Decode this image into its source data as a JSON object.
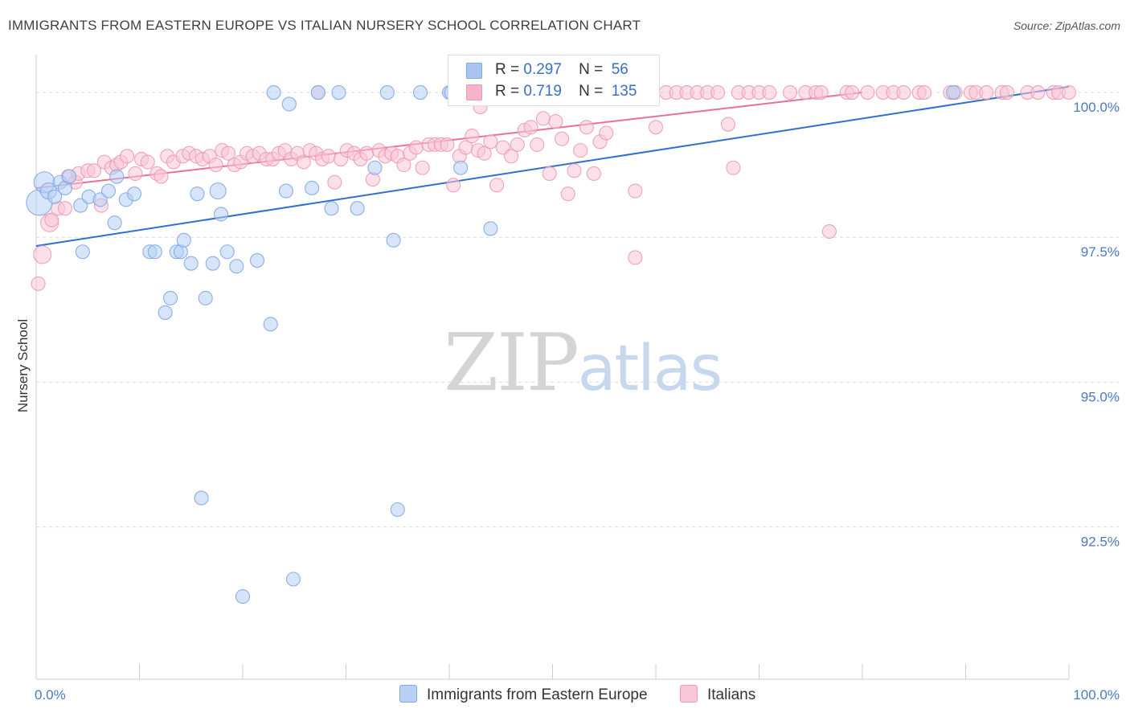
{
  "header": {
    "title": "IMMIGRANTS FROM EASTERN EUROPE VS ITALIAN NURSERY SCHOOL CORRELATION CHART",
    "source": "Source: ZipAtlas.com"
  },
  "watermark": {
    "zip": "ZIP",
    "atlas": "atlas"
  },
  "legend_box": {
    "rows": [
      {
        "r_label": "R =",
        "r_value": "0.297",
        "n_label": "N =",
        "n_value": "56",
        "color": "#a9c4ee"
      },
      {
        "r_label": "R =",
        "r_value": "0.719",
        "n_label": "N =",
        "n_value": "135",
        "color": "#f5b4c8"
      }
    ]
  },
  "bottom_legend": [
    {
      "label": "Immigrants from Eastern Europe",
      "color": "#b7d0f5"
    },
    {
      "label": "Italians",
      "color": "#f8c6d5"
    }
  ],
  "chart_data": {
    "type": "scatter",
    "title": "IMMIGRANTS FROM EASTERN EUROPE VS ITALIAN NURSERY SCHOOL CORRELATION CHART",
    "xlabel": "",
    "ylabel": "Nursery School",
    "xlim": [
      0,
      100
    ],
    "ylim": [
      90.15,
      100.5
    ],
    "x_tick_labels": [
      "0.0%",
      "100.0%"
    ],
    "y_ticks": [
      {
        "value": 100.0,
        "label": "100.0%"
      },
      {
        "value": 97.5,
        "label": "97.5%"
      },
      {
        "value": 95.0,
        "label": "95.0%"
      },
      {
        "value": 92.5,
        "label": "92.5%"
      }
    ],
    "series": [
      {
        "name": "Immigrants from Eastern Europe",
        "color": "#7fa7e6",
        "fill": "#b7d0f5",
        "line_color": "#2f6fd0",
        "trend": {
          "x0": 0,
          "y0": 97.35,
          "x1": 100,
          "y1": 100.1
        },
        "points": [
          [
            0.3,
            98.1
          ],
          [
            0.8,
            98.45
          ],
          [
            1.2,
            98.3
          ],
          [
            1.8,
            98.2
          ],
          [
            2.3,
            98.45
          ],
          [
            2.8,
            98.35
          ],
          [
            3.2,
            98.55
          ],
          [
            4.5,
            97.25
          ],
          [
            4.3,
            98.05
          ],
          [
            5.1,
            98.2
          ],
          [
            6.2,
            98.15
          ],
          [
            7.0,
            98.3
          ],
          [
            7.8,
            98.55
          ],
          [
            7.6,
            97.75
          ],
          [
            8.7,
            98.15
          ],
          [
            9.5,
            98.25
          ],
          [
            11.0,
            97.25
          ],
          [
            11.5,
            97.25
          ],
          [
            12.5,
            96.2
          ],
          [
            13.0,
            96.45
          ],
          [
            13.6,
            97.25
          ],
          [
            14.0,
            97.25
          ],
          [
            14.3,
            97.45
          ],
          [
            15.0,
            97.05
          ],
          [
            15.6,
            98.25
          ],
          [
            16.0,
            93.0
          ],
          [
            16.4,
            96.45
          ],
          [
            17.1,
            97.05
          ],
          [
            17.6,
            98.3
          ],
          [
            17.9,
            97.9
          ],
          [
            18.5,
            97.25
          ],
          [
            19.4,
            97.0
          ],
          [
            20.0,
            91.3
          ],
          [
            21.4,
            97.1
          ],
          [
            22.7,
            96.0
          ],
          [
            23.0,
            100.0
          ],
          [
            24.2,
            98.3
          ],
          [
            24.5,
            99.8
          ],
          [
            24.9,
            91.6
          ],
          [
            26.7,
            98.35
          ],
          [
            27.3,
            100.0
          ],
          [
            28.6,
            98.0
          ],
          [
            29.3,
            100.0
          ],
          [
            31.1,
            98.0
          ],
          [
            32.8,
            98.7
          ],
          [
            34.0,
            100.0
          ],
          [
            34.6,
            97.45
          ],
          [
            35.0,
            92.8
          ],
          [
            37.2,
            100.0
          ],
          [
            40.0,
            100.0
          ],
          [
            40.2,
            100.0
          ],
          [
            41.1,
            98.7
          ],
          [
            42.6,
            100.0
          ],
          [
            43.0,
            100.0
          ],
          [
            44.0,
            97.65
          ],
          [
            88.8,
            100.0
          ]
        ],
        "sizes": {
          "0": 16,
          "1": 13,
          "2": 10,
          "28": 10
        }
      },
      {
        "name": "Italians",
        "color": "#ee9ab4",
        "fill": "#f8c6d5",
        "line_color": "#e8709a",
        "trend": {
          "x0": 0,
          "y0": 98.35,
          "x1": 80,
          "y1": 100.0
        },
        "points": [
          [
            0.2,
            96.7
          ],
          [
            0.6,
            97.2
          ],
          [
            1.3,
            97.75
          ],
          [
            1.5,
            97.8
          ],
          [
            2.1,
            98.0
          ],
          [
            2.8,
            98.0
          ],
          [
            3.1,
            98.55
          ],
          [
            3.8,
            98.45
          ],
          [
            4.1,
            98.6
          ],
          [
            5.0,
            98.65
          ],
          [
            5.6,
            98.65
          ],
          [
            6.3,
            98.05
          ],
          [
            6.6,
            98.8
          ],
          [
            7.3,
            98.7
          ],
          [
            7.8,
            98.75
          ],
          [
            8.2,
            98.8
          ],
          [
            8.8,
            98.9
          ],
          [
            9.6,
            98.6
          ],
          [
            10.2,
            98.85
          ],
          [
            10.8,
            98.8
          ],
          [
            11.7,
            98.6
          ],
          [
            12.1,
            98.55
          ],
          [
            12.7,
            98.9
          ],
          [
            13.3,
            98.8
          ],
          [
            14.2,
            98.9
          ],
          [
            14.8,
            98.95
          ],
          [
            15.5,
            98.9
          ],
          [
            16.1,
            98.85
          ],
          [
            16.8,
            98.9
          ],
          [
            17.4,
            98.75
          ],
          [
            18.0,
            99.0
          ],
          [
            18.6,
            98.95
          ],
          [
            19.2,
            98.75
          ],
          [
            19.8,
            98.8
          ],
          [
            20.4,
            98.95
          ],
          [
            21.0,
            98.9
          ],
          [
            21.6,
            98.95
          ],
          [
            22.3,
            98.85
          ],
          [
            22.9,
            98.85
          ],
          [
            23.5,
            98.95
          ],
          [
            24.1,
            99.0
          ],
          [
            24.7,
            98.85
          ],
          [
            25.3,
            98.95
          ],
          [
            25.9,
            98.8
          ],
          [
            26.5,
            99.0
          ],
          [
            27.1,
            98.95
          ],
          [
            27.7,
            98.85
          ],
          [
            28.3,
            98.9
          ],
          [
            28.9,
            98.45
          ],
          [
            29.5,
            98.85
          ],
          [
            30.1,
            99.0
          ],
          [
            30.8,
            98.95
          ],
          [
            31.4,
            98.85
          ],
          [
            32.0,
            98.95
          ],
          [
            32.6,
            98.5
          ],
          [
            33.2,
            99.0
          ],
          [
            33.8,
            98.9
          ],
          [
            34.4,
            98.95
          ],
          [
            35.0,
            98.9
          ],
          [
            35.6,
            98.75
          ],
          [
            36.2,
            98.95
          ],
          [
            36.8,
            99.05
          ],
          [
            37.4,
            98.7
          ],
          [
            38.0,
            99.1
          ],
          [
            38.6,
            99.1
          ],
          [
            39.2,
            99.1
          ],
          [
            39.8,
            99.1
          ],
          [
            40.4,
            98.4
          ],
          [
            41.0,
            98.9
          ],
          [
            41.6,
            99.05
          ],
          [
            42.2,
            99.25
          ],
          [
            42.8,
            99.0
          ],
          [
            43.4,
            98.95
          ],
          [
            44.0,
            99.15
          ],
          [
            44.6,
            98.4
          ],
          [
            45.2,
            99.05
          ],
          [
            46.0,
            98.9
          ],
          [
            46.6,
            99.1
          ],
          [
            47.3,
            99.35
          ],
          [
            47.9,
            99.4
          ],
          [
            48.5,
            99.1
          ],
          [
            49.1,
            99.55
          ],
          [
            49.7,
            98.6
          ],
          [
            50.3,
            99.5
          ],
          [
            50.9,
            99.2
          ],
          [
            51.5,
            98.25
          ],
          [
            52.1,
            98.65
          ],
          [
            52.7,
            99.0
          ],
          [
            53.3,
            99.4
          ],
          [
            54.0,
            98.6
          ],
          [
            54.6,
            99.15
          ],
          [
            55.2,
            99.3
          ],
          [
            58.0,
            98.3
          ],
          [
            58.0,
            97.15
          ],
          [
            60.0,
            99.4
          ],
          [
            61.0,
            100.0
          ],
          [
            62.0,
            100.0
          ],
          [
            63.0,
            100.0
          ],
          [
            64.0,
            100.0
          ],
          [
            65.0,
            100.0
          ],
          [
            66.0,
            100.0
          ],
          [
            67.0,
            99.45
          ],
          [
            67.5,
            98.7
          ],
          [
            68.0,
            100.0
          ],
          [
            69.0,
            100.0
          ],
          [
            70.0,
            100.0
          ],
          [
            71.0,
            100.0
          ],
          [
            73.0,
            100.0
          ],
          [
            74.5,
            100.0
          ],
          [
            75.5,
            100.0
          ],
          [
            76.0,
            100.0
          ],
          [
            78.5,
            100.0
          ],
          [
            79.0,
            100.0
          ],
          [
            80.5,
            100.0
          ],
          [
            82.0,
            100.0
          ],
          [
            83.0,
            100.0
          ],
          [
            84.0,
            100.0
          ],
          [
            85.5,
            100.0
          ],
          [
            86.0,
            100.0
          ],
          [
            88.5,
            100.0
          ],
          [
            89.0,
            100.0
          ],
          [
            90.5,
            100.0
          ],
          [
            91.0,
            100.0
          ],
          [
            92.0,
            100.0
          ],
          [
            93.5,
            100.0
          ],
          [
            94.0,
            100.0
          ],
          [
            96.0,
            100.0
          ],
          [
            97.0,
            100.0
          ],
          [
            98.5,
            100.0
          ],
          [
            99.0,
            100.0
          ],
          [
            100.0,
            100.0
          ],
          [
            76.8,
            97.6
          ],
          [
            49.0,
            100.0
          ],
          [
            43.0,
            99.75
          ],
          [
            27.3,
            100.0
          ]
        ],
        "sizes": {
          "1": 11,
          "2": 11
        }
      }
    ]
  }
}
